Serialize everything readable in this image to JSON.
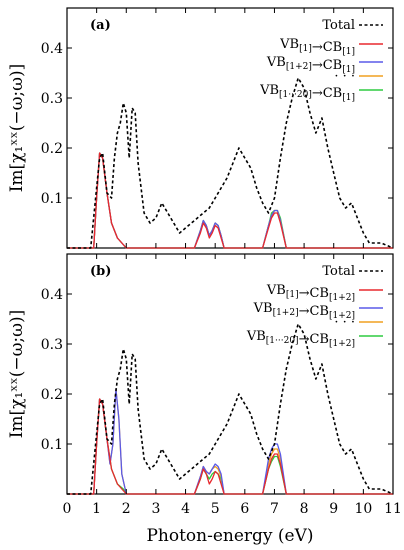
{
  "chart_data": [
    {
      "type": "line",
      "panel_label": "(a)",
      "ylabel": "Im[χ₁ˣˣ(−ω;ω)]",
      "xlim": [
        0,
        11
      ],
      "ylim": [
        0,
        0.48
      ],
      "yticks": [
        0.1,
        0.2,
        0.3,
        0.4
      ],
      "grid": false,
      "legend_position": "top-right",
      "legend": [
        "Total",
        "VB[1]→CB[1]",
        "VB[1+2]→CB[1]",
        "· · ·",
        "VB[1···20]→CB[1]"
      ],
      "series": [
        {
          "name": "Total",
          "color": "#000000",
          "dash": true,
          "x": [
            0,
            0.8,
            1.0,
            1.1,
            1.2,
            1.35,
            1.5,
            1.6,
            1.7,
            1.8,
            1.9,
            2.0,
            2.1,
            2.2,
            2.3,
            2.4,
            2.5,
            2.6,
            2.8,
            3.0,
            3.2,
            3.4,
            3.6,
            3.8,
            4.0,
            4.2,
            4.4,
            4.6,
            4.8,
            5.0,
            5.2,
            5.4,
            5.6,
            5.8,
            6.0,
            6.2,
            6.4,
            6.6,
            6.8,
            7.0,
            7.2,
            7.4,
            7.6,
            7.8,
            8.0,
            8.2,
            8.4,
            8.6,
            8.8,
            9.0,
            9.2,
            9.4,
            9.6,
            9.8,
            10.0,
            10.2,
            10.4,
            10.6,
            10.8,
            11.0
          ],
          "y": [
            0,
            0,
            0.12,
            0.18,
            0.19,
            0.11,
            0.1,
            0.18,
            0.23,
            0.25,
            0.29,
            0.27,
            0.18,
            0.28,
            0.27,
            0.17,
            0.12,
            0.07,
            0.05,
            0.06,
            0.09,
            0.07,
            0.05,
            0.03,
            0.04,
            0.05,
            0.06,
            0.07,
            0.08,
            0.1,
            0.12,
            0.14,
            0.17,
            0.2,
            0.18,
            0.16,
            0.12,
            0.09,
            0.07,
            0.1,
            0.18,
            0.25,
            0.3,
            0.34,
            0.32,
            0.27,
            0.23,
            0.26,
            0.2,
            0.15,
            0.1,
            0.08,
            0.09,
            0.06,
            0.03,
            0.01,
            0.01,
            0.01,
            0.005,
            0
          ]
        },
        {
          "name": "VB[1]→CB[1]",
          "color": "#e8292e",
          "x": [
            0,
            0.9,
            1.0,
            1.1,
            1.2,
            1.35,
            1.5,
            1.7,
            2.0,
            4.3,
            4.5,
            4.6,
            4.7,
            4.8,
            4.9,
            5.0,
            5.1,
            5.2,
            5.3,
            6.6,
            6.8,
            6.9,
            7.0,
            7.1,
            7.2,
            7.4,
            11.0
          ],
          "y": [
            0,
            0,
            0.1,
            0.19,
            0.18,
            0.11,
            0.05,
            0.02,
            0,
            0,
            0.03,
            0.05,
            0.04,
            0.02,
            0.03,
            0.045,
            0.04,
            0.02,
            0,
            0,
            0.04,
            0.06,
            0.07,
            0.07,
            0.05,
            0,
            0
          ]
        },
        {
          "name": "VB[1+2]→CB[1]",
          "color": "#5a5ae8",
          "x": [
            0,
            0.9,
            1.0,
            1.1,
            1.2,
            1.35,
            1.5,
            1.7,
            2.0,
            4.3,
            4.5,
            4.6,
            4.7,
            4.8,
            4.9,
            5.0,
            5.1,
            5.2,
            5.3,
            6.6,
            6.8,
            6.9,
            7.0,
            7.1,
            7.2,
            7.4,
            11.0
          ],
          "y": [
            0,
            0,
            0.1,
            0.19,
            0.18,
            0.11,
            0.05,
            0.02,
            0,
            0,
            0.035,
            0.055,
            0.045,
            0.025,
            0.035,
            0.05,
            0.045,
            0.025,
            0,
            0,
            0.045,
            0.065,
            0.075,
            0.075,
            0.055,
            0,
            0
          ]
        },
        {
          "name": "· · ·",
          "color": "#f0a020",
          "x": [
            0,
            0.9,
            1.0,
            1.1,
            1.2,
            1.35,
            1.5,
            1.7,
            2.0,
            4.3,
            4.5,
            4.6,
            4.7,
            4.8,
            4.9,
            5.0,
            5.1,
            5.2,
            5.3,
            6.6,
            6.8,
            6.9,
            7.0,
            7.1,
            7.2,
            7.4,
            11.0
          ],
          "y": [
            0,
            0,
            0.1,
            0.19,
            0.18,
            0.11,
            0.05,
            0.02,
            0,
            0,
            0.035,
            0.055,
            0.045,
            0.025,
            0.035,
            0.05,
            0.045,
            0.025,
            0,
            0,
            0.045,
            0.065,
            0.075,
            0.075,
            0.055,
            0,
            0
          ]
        },
        {
          "name": "VB[1···20]→CB[1]",
          "color": "#2ecc40",
          "x": [
            0,
            0.9,
            1.0,
            1.1,
            1.2,
            1.35,
            1.5,
            1.7,
            2.0,
            4.3,
            4.5,
            4.6,
            4.7,
            4.8,
            4.9,
            5.0,
            5.1,
            5.2,
            5.3,
            6.6,
            6.8,
            6.9,
            7.0,
            7.1,
            7.2,
            7.4,
            11.0
          ],
          "y": [
            0,
            0,
            0.1,
            0.19,
            0.18,
            0.11,
            0.05,
            0.02,
            0,
            0,
            0.035,
            0.055,
            0.045,
            0.025,
            0.035,
            0.05,
            0.045,
            0.025,
            0,
            0,
            0.045,
            0.07,
            0.075,
            0.075,
            0.06,
            0,
            0
          ]
        }
      ]
    },
    {
      "type": "line",
      "panel_label": "(b)",
      "ylabel": "Im[χ₁ˣˣ(−ω;ω)]",
      "xlabel": "Photon-energy (eV)",
      "xlim": [
        0,
        11
      ],
      "ylim": [
        0,
        0.48
      ],
      "xticks": [
        0,
        1,
        2,
        3,
        4,
        5,
        6,
        7,
        8,
        9,
        10,
        11
      ],
      "yticks": [
        0.1,
        0.2,
        0.3,
        0.4
      ],
      "grid": false,
      "legend_position": "top-right",
      "legend": [
        "Total",
        "VB[1]→CB[1+2]",
        "VB[1+2]→CB[1+2]",
        "· · ·",
        "VB[1···20]→CB[1+2]"
      ],
      "series": [
        {
          "name": "Total",
          "color": "#000000",
          "dash": true,
          "x": [
            0,
            0.8,
            1.0,
            1.1,
            1.2,
            1.35,
            1.5,
            1.6,
            1.7,
            1.8,
            1.9,
            2.0,
            2.1,
            2.2,
            2.3,
            2.4,
            2.5,
            2.6,
            2.8,
            3.0,
            3.2,
            3.4,
            3.6,
            3.8,
            4.0,
            4.2,
            4.4,
            4.6,
            4.8,
            5.0,
            5.2,
            5.4,
            5.6,
            5.8,
            6.0,
            6.2,
            6.4,
            6.6,
            6.8,
            7.0,
            7.2,
            7.4,
            7.6,
            7.8,
            8.0,
            8.2,
            8.4,
            8.6,
            8.8,
            9.0,
            9.2,
            9.4,
            9.6,
            9.8,
            10.0,
            10.2,
            10.4,
            10.6,
            10.8,
            11.0
          ],
          "y": [
            0,
            0,
            0.12,
            0.18,
            0.19,
            0.11,
            0.1,
            0.18,
            0.23,
            0.25,
            0.29,
            0.27,
            0.18,
            0.28,
            0.27,
            0.17,
            0.12,
            0.07,
            0.05,
            0.06,
            0.09,
            0.07,
            0.05,
            0.03,
            0.04,
            0.05,
            0.06,
            0.07,
            0.08,
            0.1,
            0.12,
            0.14,
            0.17,
            0.2,
            0.18,
            0.16,
            0.12,
            0.09,
            0.07,
            0.1,
            0.18,
            0.25,
            0.3,
            0.34,
            0.32,
            0.27,
            0.23,
            0.26,
            0.2,
            0.15,
            0.1,
            0.08,
            0.09,
            0.06,
            0.03,
            0.01,
            0.01,
            0.01,
            0.005,
            0
          ]
        },
        {
          "name": "VB[1]→CB[1+2]",
          "color": "#e8292e",
          "x": [
            0,
            0.9,
            1.0,
            1.1,
            1.2,
            1.35,
            1.5,
            1.7,
            2.0,
            4.3,
            4.5,
            4.6,
            4.7,
            4.8,
            4.9,
            5.0,
            5.1,
            5.2,
            5.3,
            6.6,
            6.8,
            6.9,
            7.0,
            7.1,
            7.2,
            7.4,
            11.0
          ],
          "y": [
            0,
            0,
            0.1,
            0.19,
            0.18,
            0.11,
            0.05,
            0.02,
            0,
            0,
            0.03,
            0.05,
            0.04,
            0.02,
            0.03,
            0.045,
            0.04,
            0.02,
            0,
            0,
            0.05,
            0.07,
            0.08,
            0.08,
            0.06,
            0,
            0
          ]
        },
        {
          "name": "VB[1+2]→CB[1+2]",
          "color": "#5a5ae8",
          "x": [
            0,
            0.9,
            1.0,
            1.1,
            1.2,
            1.35,
            1.45,
            1.55,
            1.65,
            1.75,
            1.85,
            2.0,
            4.3,
            4.5,
            4.6,
            4.7,
            4.8,
            4.9,
            5.0,
            5.1,
            5.2,
            5.3,
            6.6,
            6.8,
            6.9,
            7.0,
            7.1,
            7.2,
            7.4,
            11.0
          ],
          "y": [
            0,
            0,
            0.1,
            0.19,
            0.18,
            0.11,
            0.06,
            0.1,
            0.21,
            0.15,
            0.04,
            0,
            0,
            0.035,
            0.055,
            0.045,
            0.04,
            0.05,
            0.06,
            0.055,
            0.04,
            0,
            0,
            0.07,
            0.09,
            0.1,
            0.1,
            0.08,
            0,
            0
          ]
        },
        {
          "name": "· · ·",
          "color": "#f0a020",
          "x": [
            0,
            0.9,
            1.0,
            1.1,
            1.2,
            1.35,
            1.45,
            1.55,
            1.65,
            1.75,
            1.85,
            2.0,
            4.3,
            4.5,
            4.6,
            4.7,
            4.8,
            4.9,
            5.0,
            5.1,
            5.2,
            5.3,
            6.6,
            6.8,
            6.9,
            7.0,
            7.1,
            7.2,
            7.4,
            11.0
          ],
          "y": [
            0,
            0,
            0.1,
            0.19,
            0.18,
            0.11,
            0.06,
            0.1,
            0.21,
            0.15,
            0.04,
            0,
            0,
            0.035,
            0.055,
            0.045,
            0.04,
            0.05,
            0.055,
            0.05,
            0.035,
            0,
            0,
            0.06,
            0.08,
            0.09,
            0.09,
            0.07,
            0,
            0
          ]
        },
        {
          "name": "VB[1···20]→CB[1+2]",
          "color": "#2ecc40",
          "x": [
            0,
            0.9,
            1.0,
            1.1,
            1.2,
            1.35,
            1.5,
            1.7,
            1.9,
            2.0,
            4.3,
            4.5,
            4.6,
            4.7,
            4.8,
            4.9,
            5.0,
            5.1,
            5.2,
            5.3,
            6.6,
            6.8,
            6.9,
            7.0,
            7.1,
            7.2,
            7.4,
            11.0
          ],
          "y": [
            0,
            0,
            0.1,
            0.19,
            0.18,
            0.11,
            0.05,
            0.02,
            0.01,
            0,
            0,
            0.03,
            0.05,
            0.04,
            0.03,
            0.04,
            0.045,
            0.04,
            0.03,
            0,
            0,
            0.05,
            0.065,
            0.075,
            0.075,
            0.055,
            0,
            0
          ]
        }
      ]
    }
  ]
}
